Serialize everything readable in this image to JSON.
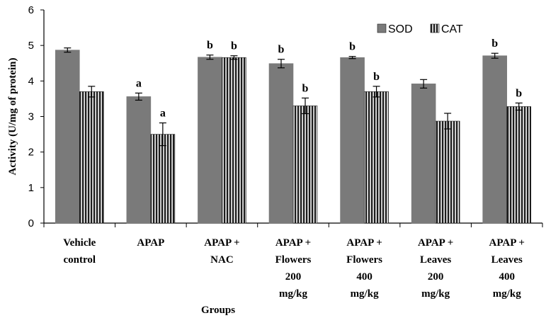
{
  "chart_data": {
    "type": "bar",
    "title": "",
    "xlabel": "Groups",
    "ylabel": "Activity (U/mg of protein)",
    "ylim": [
      0,
      6
    ],
    "yticks": [
      "0",
      "1",
      "2",
      "3",
      "4",
      "5",
      "6"
    ],
    "categories": [
      [
        "Vehicle",
        "control"
      ],
      [
        "APAP"
      ],
      [
        "APAP +",
        "NAC"
      ],
      [
        "APAP +",
        "Flowers",
        "200",
        "mg/kg"
      ],
      [
        "APAP +",
        "Flowers",
        "400",
        "mg/kg"
      ],
      [
        "APAP +",
        "Leaves",
        "200",
        "mg/kg"
      ],
      [
        "APAP +",
        "Leaves",
        "400",
        "mg/kg"
      ]
    ],
    "series": [
      {
        "name": "SOD",
        "color": "#7a7a7a",
        "pattern": "solid",
        "values": [
          4.87,
          3.56,
          4.67,
          4.49,
          4.66,
          3.92,
          4.71
        ],
        "errors": [
          0.06,
          0.1,
          0.06,
          0.12,
          0.03,
          0.12,
          0.07
        ],
        "labels": [
          "",
          "a",
          "b",
          "b",
          "b",
          "",
          "b"
        ]
      },
      {
        "name": "CAT",
        "color": "#404040",
        "pattern": "vertical-stripes",
        "values": [
          3.7,
          2.5,
          4.66,
          3.3,
          3.7,
          2.87,
          3.28
        ],
        "errors": [
          0.15,
          0.32,
          0.05,
          0.22,
          0.15,
          0.22,
          0.1
        ],
        "labels": [
          "",
          "a",
          "b",
          "b",
          "b",
          "",
          "b"
        ]
      }
    ],
    "legend": "top-right",
    "grid": false
  }
}
